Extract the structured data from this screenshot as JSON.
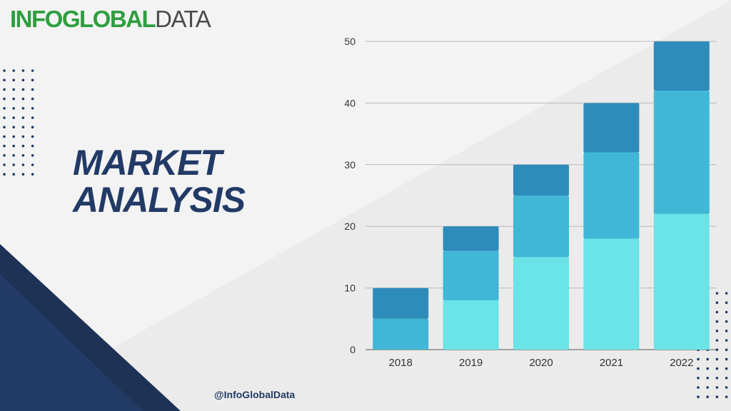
{
  "brand": {
    "part1": "INFOGLOBAL",
    "part2": "DATA"
  },
  "headline": {
    "line1": "MARKET",
    "line2": "ANALYSIS"
  },
  "handle": "@InfoGlobalData",
  "colors": {
    "navy": "#223a66",
    "navy_dark": "#1e3255",
    "brand_green": "#2e9e3f",
    "brand_gray": "#4b4b4b",
    "series_bottom": "#6ae4e6",
    "series_middle": "#40b7d6",
    "series_top": "#2e8cbb"
  },
  "chart_data": {
    "type": "bar",
    "stacked": true,
    "categories": [
      "2018",
      "2019",
      "2020",
      "2021",
      "2022"
    ],
    "series": [
      {
        "values": [
          0,
          8,
          15,
          18,
          22
        ],
        "color": "#6ae4e6"
      },
      {
        "values": [
          5,
          8,
          10,
          14,
          20
        ],
        "color": "#40b7d6"
      },
      {
        "values": [
          5,
          4,
          5,
          8,
          8
        ],
        "color": "#2e8cbb"
      }
    ],
    "yticks": [
      "0",
      "10",
      "20",
      "30",
      "40",
      "50"
    ],
    "ylim": [
      0,
      50
    ],
    "grid": true,
    "legend": "none"
  }
}
